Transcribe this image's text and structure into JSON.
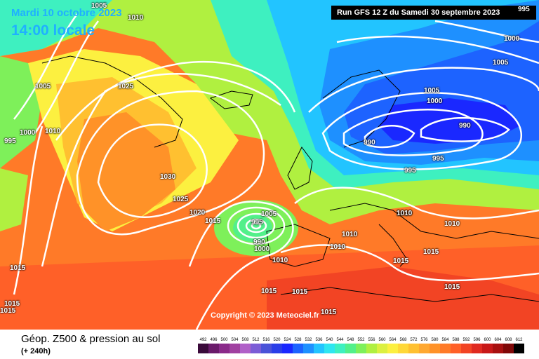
{
  "header": {
    "date": "Mardi 10 octobre 2023",
    "time": "14:00 locale",
    "run": "Run GFS 12 Z du Samedi 30 septembre 2023"
  },
  "copyright": "Copyright © 2023 Meteociel.fr",
  "footer": {
    "title": "Géop. Z500 & pression au sol",
    "subtitle": "(+ 240h)"
  },
  "scale": {
    "labels": [
      "492",
      "496",
      "500",
      "504",
      "508",
      "512",
      "516",
      "520",
      "524",
      "528",
      "532",
      "536",
      "540",
      "544",
      "548",
      "552",
      "556",
      "560",
      "564",
      "568",
      "572",
      "576",
      "580",
      "584",
      "588",
      "592",
      "596",
      "600",
      "604",
      "608",
      "612"
    ],
    "colors": [
      "#3a0a3a",
      "#6a1a6a",
      "#8a2a8a",
      "#a040a0",
      "#b060c8",
      "#7b5cd6",
      "#4a52d8",
      "#2a3ee8",
      "#1a28ff",
      "#1d63ff",
      "#1e90ff",
      "#22c4ff",
      "#2ee6f0",
      "#3ef0c0",
      "#52f08a",
      "#7ef05a",
      "#b0f040",
      "#dcf040",
      "#fcf040",
      "#ffd838",
      "#ffc030",
      "#ffa830",
      "#ff9228",
      "#ff7a28",
      "#ff6028",
      "#f24424",
      "#e02a20",
      "#c81818",
      "#a81010",
      "#800808",
      "#000000"
    ]
  },
  "isobars": [
    {
      "id": "l1005-nw",
      "label": "1005"
    },
    {
      "id": "l1025",
      "label": "1025"
    },
    {
      "id": "l1000-w",
      "label": "1000"
    },
    {
      "id": "l1010-w",
      "label": "1010"
    },
    {
      "id": "l995-w",
      "label": "995"
    },
    {
      "id": "l1030",
      "label": "1030"
    },
    {
      "id": "l1025-c",
      "label": "1025"
    },
    {
      "id": "l1020",
      "label": "1020"
    },
    {
      "id": "l1015-c",
      "label": "1015"
    },
    {
      "id": "l1005-c",
      "label": "1005"
    },
    {
      "id": "l995-c",
      "label": "995"
    },
    {
      "id": "l990-c",
      "label": "990"
    },
    {
      "id": "l1000-c",
      "label": "1000"
    },
    {
      "id": "l1010-p",
      "label": "1010"
    },
    {
      "id": "l1010-f",
      "label": "1010"
    },
    {
      "id": "l1010-b",
      "label": "1010"
    },
    {
      "id": "l1010-g",
      "label": "1010"
    },
    {
      "id": "l1010-e",
      "label": "1010"
    },
    {
      "id": "l1010-pl",
      "label": "1010"
    },
    {
      "id": "l1015-w1",
      "label": "1015"
    },
    {
      "id": "l1015-w2",
      "label": "1015"
    },
    {
      "id": "l1015-s1",
      "label": "1015"
    },
    {
      "id": "l1015-s2",
      "label": "1015"
    },
    {
      "id": "l1015-s3",
      "label": "1015"
    },
    {
      "id": "l1015-i",
      "label": "1015"
    },
    {
      "id": "l1015-g",
      "label": "1015"
    },
    {
      "id": "l1015-b",
      "label": "1015"
    },
    {
      "id": "l1015-t",
      "label": "1015"
    },
    {
      "id": "l990-n1",
      "label": "990"
    },
    {
      "id": "l990-n2",
      "label": "990"
    },
    {
      "id": "l995-n",
      "label": "995"
    },
    {
      "id": "l995-n2",
      "label": "995"
    },
    {
      "id": "l1000-n",
      "label": "1000"
    },
    {
      "id": "l1005-n",
      "label": "1005"
    },
    {
      "id": "l1000-ne",
      "label": "1000"
    },
    {
      "id": "l1005-ne",
      "label": "1005"
    },
    {
      "id": "l995-ne",
      "label": "995"
    },
    {
      "id": "l1010-top",
      "label": "1010"
    },
    {
      "id": "l1005-top",
      "label": "1005"
    }
  ]
}
